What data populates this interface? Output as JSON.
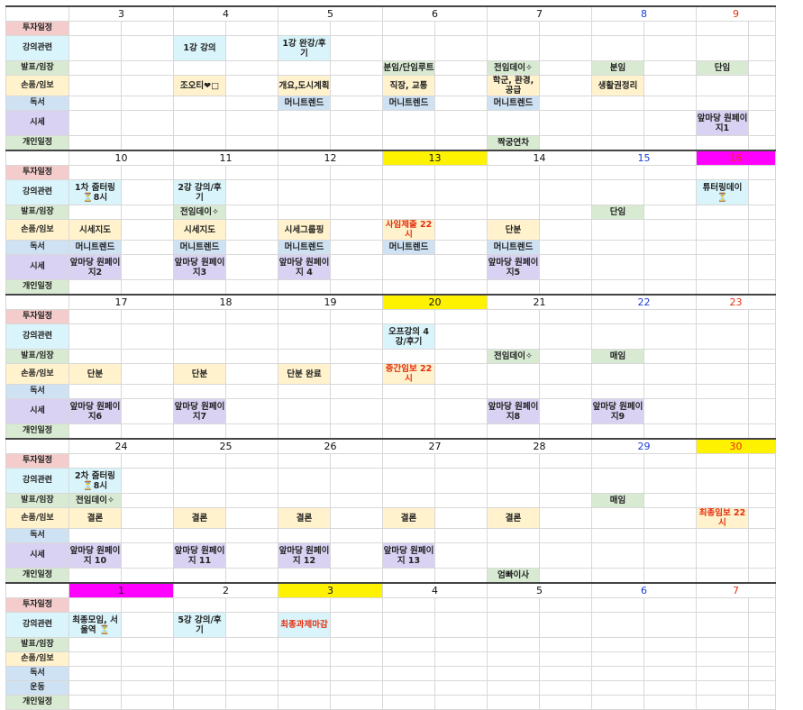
{
  "row_labels": {
    "invest": "투자일정",
    "lecture": "강의관련",
    "announce": "발표/임장",
    "handwrite": "손품/임보",
    "reading": "독서",
    "market": "시세",
    "exercise": "운동",
    "personal": "개인일정"
  },
  "weeks": [
    {
      "dates": [
        "3",
        "4",
        "5",
        "6",
        "7",
        "8",
        "9"
      ],
      "invest": [
        "",
        "",
        "",
        "",
        "",
        "",
        ""
      ],
      "lecture": [
        "",
        "1강 강의",
        "1강 완강/후기",
        "",
        "",
        "",
        ""
      ],
      "announce": [
        "",
        "",
        "",
        "분임/단임루트",
        "전임데이✧",
        "분임",
        "단임"
      ],
      "handwrite": [
        "",
        "조오티❤□",
        "개요,도시계획",
        "직장, 교통",
        "학군, 환경, 공급",
        "생활권정리",
        ""
      ],
      "reading": [
        "",
        "",
        "머니트렌드",
        "머니트렌드",
        "머니트렌드",
        "",
        ""
      ],
      "market": [
        "",
        "",
        "",
        "",
        "",
        "",
        "앞마당 원페이지1"
      ],
      "personal": [
        "",
        "",
        "",
        "",
        "짝궁연차",
        "",
        ""
      ]
    },
    {
      "dates": [
        "10",
        "11",
        "12",
        "13",
        "14",
        "15",
        "16"
      ],
      "invest": [
        "",
        "",
        "",
        "",
        "",
        "",
        ""
      ],
      "lecture": [
        "1차 줌터링 ⏳8시",
        "2강 강의/후기",
        "",
        "",
        "",
        "",
        "튜터링데이 ⏳"
      ],
      "announce": [
        "",
        "전임데이✧",
        "",
        "",
        "",
        "단임",
        ""
      ],
      "handwrite": [
        "시세지도",
        "시세지도",
        "시세그룹핑",
        "사임제출 22시",
        "단분",
        "",
        ""
      ],
      "reading": [
        "머니트렌드",
        "머니트렌드",
        "머니트렌드",
        "머니트렌드",
        "머니트렌드",
        "",
        ""
      ],
      "market": [
        "앞마당 원페이지2",
        "앞마당 원페이지3",
        "앞마당 원페이지 4",
        "",
        "앞마당 원페이지5",
        "",
        ""
      ],
      "personal": [
        "",
        "",
        "",
        "",
        "",
        "",
        ""
      ]
    },
    {
      "dates": [
        "17",
        "18",
        "19",
        "20",
        "21",
        "22",
        "23"
      ],
      "invest": [
        "",
        "",
        "",
        "",
        "",
        "",
        ""
      ],
      "lecture": [
        "",
        "",
        "",
        "오프강의 4강/후기",
        "",
        "",
        ""
      ],
      "announce": [
        "",
        "",
        "",
        "",
        "전임데이✧",
        "매임",
        ""
      ],
      "handwrite": [
        "단분",
        "단분",
        "단분 완료",
        "중간임보 22시",
        "",
        "",
        ""
      ],
      "reading": [
        "",
        "",
        "",
        "",
        "",
        "",
        ""
      ],
      "market": [
        "앞마당 원페이지6",
        "앞마당 원페이지7",
        "",
        "",
        "앞마당 원페이지8",
        "앞마당 원페이지9",
        ""
      ],
      "personal": [
        "",
        "",
        "",
        "",
        "",
        "",
        ""
      ]
    },
    {
      "dates": [
        "24",
        "25",
        "26",
        "27",
        "28",
        "29",
        "30"
      ],
      "invest": [
        "",
        "",
        "",
        "",
        "",
        "",
        ""
      ],
      "lecture": [
        "2차 줌터링 ⏳8시",
        "",
        "",
        "",
        "",
        "",
        ""
      ],
      "announce": [
        "전임데이✧",
        "",
        "",
        "",
        "",
        "매임",
        ""
      ],
      "handwrite": [
        "결론",
        "결론",
        "결론",
        "결론",
        "결론",
        "",
        "최종임보 22시"
      ],
      "reading": [
        "",
        "",
        "",
        "",
        "",
        "",
        ""
      ],
      "market": [
        "앞마당 원페이지 10",
        "앞마당 원페이지 11",
        "앞마당 원페이지 12",
        "앞마당 원페이지 13",
        "",
        "",
        ""
      ],
      "personal": [
        "",
        "",
        "",
        "",
        "엄빠이사",
        "",
        ""
      ]
    },
    {
      "dates": [
        "1",
        "2",
        "3",
        "4",
        "5",
        "6",
        "7"
      ],
      "invest": [
        "",
        "",
        "",
        "",
        "",
        "",
        ""
      ],
      "lecture": [
        "최종모임, 서울역 ⏳",
        "5강 강의/후기",
        "최종과제마감",
        "",
        "",
        "",
        ""
      ],
      "announce": [
        "",
        "",
        "",
        "",
        "",
        "",
        ""
      ],
      "handwrite": [
        "",
        "",
        "",
        "",
        "",
        "",
        ""
      ],
      "reading": [
        "",
        "",
        "",
        "",
        "",
        "",
        ""
      ],
      "exercise": [
        "",
        "",
        "",
        "",
        "",
        "",
        ""
      ],
      "personal": [
        "",
        "",
        "",
        "",
        "",
        "",
        ""
      ]
    }
  ],
  "colors": {
    "saturday": "#1a3fd8",
    "sunday": "#e53010",
    "highlight_yellow": "#fff200",
    "highlight_magenta": "#ff00ff"
  }
}
